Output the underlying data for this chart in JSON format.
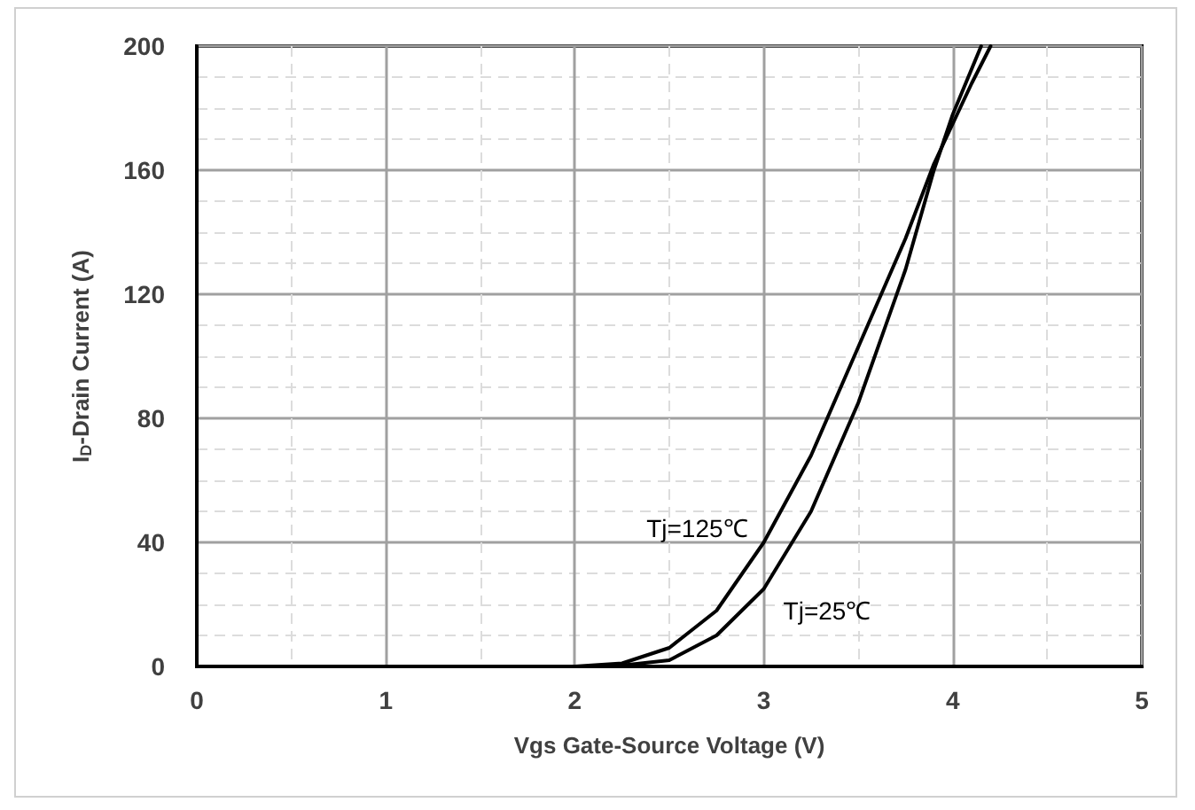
{
  "chart_data": {
    "type": "line",
    "xlabel": "Vgs Gate-Source Voltage (V)",
    "ylabel": "I$_{D}$-Drain Current (A)",
    "xlim": [
      0,
      5
    ],
    "xticks": [
      0,
      1,
      2,
      3,
      4,
      5
    ],
    "ylim": [
      0,
      200
    ],
    "yticks": [
      0,
      40,
      80,
      120,
      160,
      200
    ],
    "grid": true,
    "marker": "none",
    "line_style": "solid",
    "series": [
      {
        "name": "Tj=125℃",
        "color": "#000000",
        "x": [
          0,
          1,
          2,
          2.25,
          2.5,
          2.75,
          3,
          3.25,
          3.5,
          3.75,
          3.9,
          4,
          4.1,
          4.2
        ],
        "values": [
          0,
          0,
          0,
          1,
          6,
          18,
          40,
          68,
          103,
          138,
          162,
          175,
          188,
          200
        ]
      },
      {
        "name": "Tj=25℃",
        "color": "#000000",
        "x": [
          0,
          1,
          2,
          2.2,
          2.5,
          2.75,
          3,
          3.25,
          3.5,
          3.75,
          3.9,
          4,
          4.15
        ],
        "values": [
          0,
          0,
          0,
          0,
          2,
          10,
          25,
          50,
          85,
          128,
          160,
          178,
          200
        ]
      }
    ]
  }
}
